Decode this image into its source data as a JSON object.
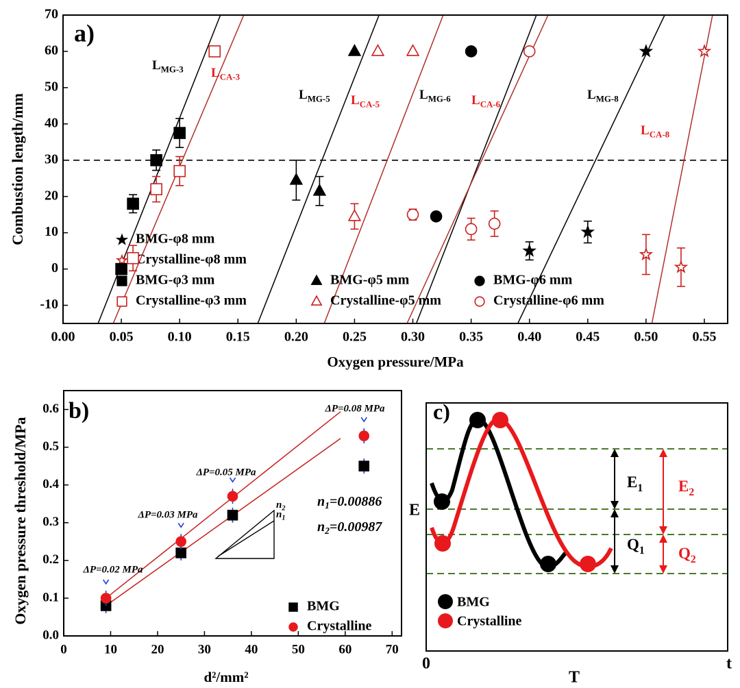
{
  "chart_data": [
    {
      "type": "scatter",
      "panel_label": "a)",
      "x_label": "Oxygen pressure/MPa",
      "y_label": "Combustion length/mm",
      "xlim": [
        0,
        0.57
      ],
      "ylim": [
        -15,
        70
      ],
      "xticks": [
        {
          "value": 0,
          "label": "0.00"
        },
        {
          "value": 0.05,
          "label": "0.05"
        },
        {
          "value": 0.1,
          "label": "0.10"
        },
        {
          "value": 0.15,
          "label": "0.15"
        },
        {
          "value": 0.2,
          "label": "0.20"
        },
        {
          "value": 0.25,
          "label": "0.25"
        },
        {
          "value": 0.3,
          "label": "0.30"
        },
        {
          "value": 0.35,
          "label": "0.35"
        },
        {
          "value": 0.4,
          "label": "0.40"
        },
        {
          "value": 0.45,
          "label": "0.45"
        },
        {
          "value": 0.5,
          "label": "0.50"
        },
        {
          "value": 0.55,
          "label": "0.55"
        }
      ],
      "yticks": [
        -10,
        0,
        10,
        20,
        30,
        40,
        50,
        60,
        70
      ],
      "reference_line": 30,
      "series": [
        {
          "name": "BMG-φ8 mm",
          "color": "#000000",
          "marker": "star",
          "filled": true,
          "x": [
            0.4,
            0.45,
            0.5
          ],
          "values": [
            5,
            10.2,
            60
          ],
          "errors": [
            2.5,
            3,
            null
          ]
        },
        {
          "name": "Crystalline-φ8 mm",
          "color": "#c8201e",
          "marker": "star",
          "filled": false,
          "x": [
            0.5,
            0.53,
            0.55
          ],
          "values": [
            4,
            0.5,
            60
          ],
          "errors": [
            5.5,
            5.3,
            null
          ]
        },
        {
          "name": "BMG-φ3 mm",
          "color": "#000000",
          "marker": "square",
          "filled": true,
          "x": [
            0.05,
            0.06,
            0.08,
            0.1
          ],
          "values": [
            0,
            18,
            30,
            37.5
          ],
          "errors": [
            null,
            2.5,
            2.8,
            4
          ]
        },
        {
          "name": "Crystalline-φ3 mm",
          "color": "#c8201e",
          "marker": "square",
          "filled": false,
          "x": [
            0.06,
            0.08,
            0.1,
            0.13
          ],
          "values": [
            3,
            22,
            27,
            60
          ],
          "errors": [
            3.5,
            3.5,
            4,
            null
          ]
        },
        {
          "name": "BMG-φ5 mm",
          "color": "#000000",
          "marker": "triangle",
          "filled": true,
          "x": [
            0.2,
            0.22,
            0.25
          ],
          "values": [
            24.5,
            21.5,
            60
          ],
          "errors": [
            5.5,
            4,
            null
          ]
        },
        {
          "name": "Crystalline-φ5 mm",
          "color": "#c8201e",
          "marker": "triangle",
          "filled": false,
          "x": [
            0.25,
            0.27,
            0.3
          ],
          "values": [
            14.5,
            60,
            60
          ],
          "errors": [
            3.5,
            null,
            null
          ]
        },
        {
          "name": "BMG-φ6 mm",
          "color": "#000000",
          "marker": "circle",
          "filled": true,
          "x": [
            0.32,
            0.35
          ],
          "values": [
            14.5,
            60
          ],
          "errors": [
            null,
            null
          ]
        },
        {
          "name": "Crystalline-φ6 mm",
          "color": "#c8201e",
          "marker": "circle",
          "filled": false,
          "x": [
            0.3,
            0.35,
            0.37,
            0.4
          ],
          "values": [
            15,
            11,
            12.5,
            60
          ],
          "errors": [
            1.5,
            3,
            3.5,
            null
          ]
        }
      ],
      "lines": [
        {
          "label": "L",
          "subscript": "MG-3",
          "color": "#000000",
          "x": [
            0.03,
            0.135
          ],
          "values": [
            -15,
            70
          ]
        },
        {
          "label": "L",
          "subscript": "CA-3",
          "color": "#b0302c",
          "x": [
            0.043,
            0.155
          ],
          "values": [
            -15,
            70
          ]
        },
        {
          "label": "L",
          "subscript": "MG-5",
          "color": "#000000",
          "x": [
            0.167,
            0.271
          ],
          "values": [
            -15,
            70
          ]
        },
        {
          "label": "L",
          "subscript": "CA-5",
          "color": "#b0302c",
          "x": [
            0.224,
            0.326
          ],
          "values": [
            -15,
            70
          ]
        },
        {
          "label": "L",
          "subscript": "MG-6",
          "color": "#000000",
          "x": [
            0.303,
            0.406
          ],
          "values": [
            -15,
            70
          ]
        },
        {
          "label": "L",
          "subscript": "CA-6",
          "color": "#b0302c",
          "x": [
            0.295,
            0.416
          ],
          "values": [
            -15,
            70
          ]
        },
        {
          "label": "L",
          "subscript": "MG-8",
          "color": "#000000",
          "x": [
            0.39,
            0.516
          ],
          "values": [
            -15,
            70
          ]
        },
        {
          "label": "L",
          "subscript": "CA-8",
          "color": "#b0302c",
          "x": [
            0.505,
            0.557
          ],
          "values": [
            -15,
            70
          ]
        }
      ]
    },
    {
      "type": "scatter",
      "panel_label": "b)",
      "x_label": "d²/mm²",
      "y_label": "Oxygen pressure threshold/MPa",
      "xlim": [
        0,
        72
      ],
      "ylim": [
        0,
        0.65
      ],
      "xticks": [
        0,
        10,
        20,
        30,
        40,
        50,
        60,
        70
      ],
      "yticks": [
        {
          "value": 0,
          "label": "0.0"
        },
        0.1,
        0.2,
        0.3,
        0.4,
        0.5,
        0.6
      ],
      "series": [
        {
          "name": "BMG",
          "color": "#000000",
          "marker": "square",
          "filled": true,
          "x": [
            9,
            25,
            36,
            64
          ],
          "values": [
            0.08,
            0.22,
            0.32,
            0.45
          ],
          "errors": [
            0.02,
            0.02,
            0.02,
            0.02
          ]
        },
        {
          "name": "Crystalline",
          "color": "#e8191c",
          "marker": "circle",
          "filled": true,
          "x": [
            9,
            25,
            36,
            64
          ],
          "values": [
            0.1,
            0.25,
            0.37,
            0.53
          ],
          "errors": [
            0.02,
            0.02,
            0.02,
            0.02
          ]
        }
      ],
      "lines": [
        {
          "color": "#c8201e",
          "x": [
            9,
            59
          ],
          "values": [
            0.1,
            0.594
          ]
        },
        {
          "color": "#c8201e",
          "x": [
            9,
            59
          ],
          "values": [
            0.08,
            0.523
          ]
        }
      ],
      "annotations": [
        {
          "text": "ΔP=0.02 MPa"
        },
        {
          "text": "ΔP=0.03 MPa"
        },
        {
          "text": "ΔP=0.05 MPa"
        },
        {
          "text": "ΔP=0.08 MPa"
        }
      ],
      "slope_labels": [
        {
          "label": "n",
          "subscript": "1",
          "text": "=0.00886"
        },
        {
          "label": "n",
          "subscript": "2",
          "text": "=0.00987"
        }
      ],
      "triangle_labels": [
        {
          "label": "n",
          "subscript": "2"
        },
        {
          "label": "n",
          "subscript": "1"
        }
      ]
    },
    {
      "type": "schematic",
      "panel_label": "c)",
      "y_label": "E",
      "x_label": "T",
      "origin_label": "0",
      "x_end_label": "t",
      "energy_labels": [
        {
          "label": "E",
          "subscript": "1",
          "color": "#000000"
        },
        {
          "label": "Q",
          "subscript": "1",
          "color": "#000000"
        },
        {
          "label": "E",
          "subscript": "2",
          "color": "#e8191c"
        },
        {
          "label": "Q",
          "subscript": "2",
          "color": "#e8191c"
        }
      ],
      "series": [
        {
          "name": "BMG",
          "color": "#000000"
        },
        {
          "name": "Crystalline",
          "color": "#e8191c"
        }
      ]
    }
  ]
}
